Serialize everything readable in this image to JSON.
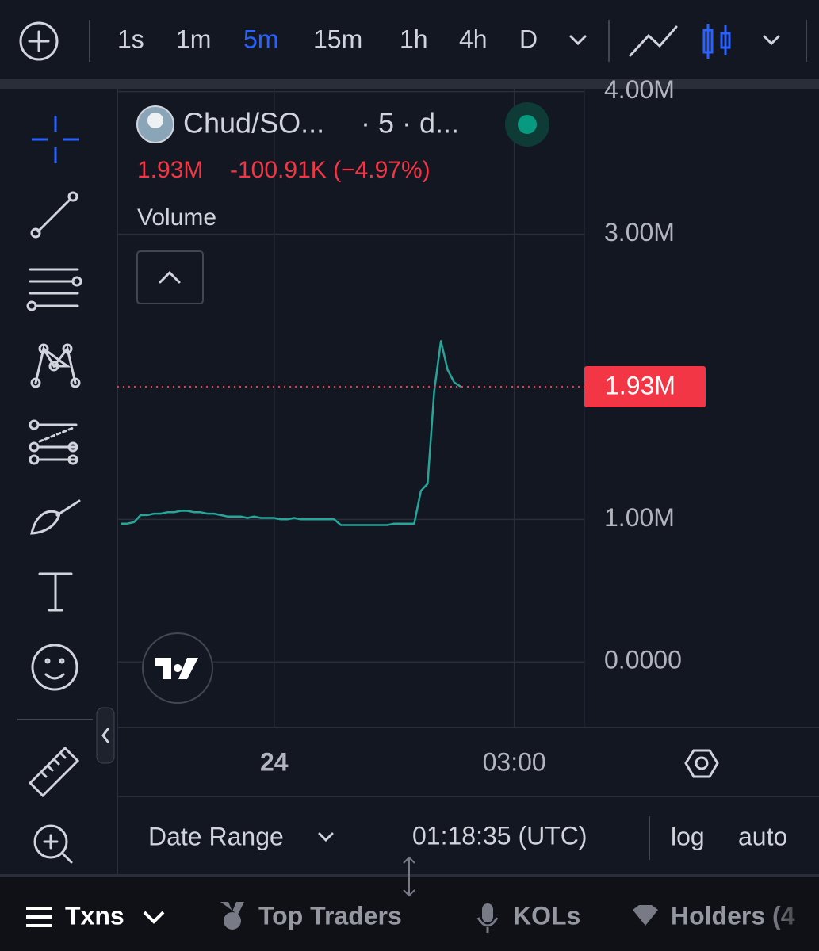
{
  "toolbar": {
    "intervals": [
      "1s",
      "1m",
      "5m",
      "15m",
      "1h",
      "4h",
      "D"
    ],
    "active": "5m"
  },
  "legend": {
    "symbol": "Chud/SO...",
    "meta": "· 5 · d...",
    "price": "1.93M",
    "change": "-100.91K (−4.97%)",
    "study": "Volume"
  },
  "chart_data": {
    "type": "line",
    "color": "#26a69a",
    "categories": [
      null,
      null,
      null,
      null,
      null,
      null,
      null,
      null,
      null,
      null,
      null,
      null,
      null,
      null,
      null,
      null,
      null,
      null,
      null,
      null,
      null,
      null,
      null,
      "24",
      null,
      null,
      null,
      null,
      null,
      null,
      null,
      null,
      null,
      null,
      null,
      null,
      null,
      null,
      null,
      null,
      null,
      null,
      null,
      null,
      null,
      null,
      null,
      null,
      null,
      null,
      null,
      null,
      null,
      null,
      null,
      null,
      null,
      null,
      null,
      "03:00",
      null,
      null,
      null,
      null,
      null,
      null,
      null,
      null,
      null,
      null
    ],
    "values": [
      970000,
      970000,
      980000,
      1030000,
      1030000,
      1040000,
      1040000,
      1050000,
      1050000,
      1060000,
      1060000,
      1050000,
      1050000,
      1040000,
      1040000,
      1030000,
      1020000,
      1020000,
      1020000,
      1010000,
      1020000,
      1010000,
      1010000,
      1010000,
      1000000,
      1000000,
      1010000,
      1000000,
      1000000,
      1000000,
      1000000,
      1000000,
      1000000,
      960000,
      960000,
      960000,
      960000,
      960000,
      960000,
      960000,
      960000,
      970000,
      970000,
      970000,
      970000,
      1200000,
      1250000,
      1900000,
      2250000,
      2050000,
      1960000,
      1930000,
      null,
      null,
      null,
      null,
      null,
      null,
      null,
      null,
      null,
      null,
      null,
      null,
      null,
      null,
      null,
      null,
      null,
      null
    ],
    "ylim": [
      -460000,
      4020000
    ],
    "yticks": [
      {
        "value": 4000000,
        "label": "4.00M"
      },
      {
        "value": 3000000,
        "label": "3.00M"
      },
      {
        "value": 1000000,
        "label": "1.00M"
      },
      {
        "value": 0,
        "label": "0.0000"
      }
    ],
    "grid": true,
    "last_value": 1930000,
    "last_value_label": "1.93M",
    "last_value_color": "#f23645"
  },
  "footer": {
    "date_range": "Date Range",
    "time": "01:18:35 (UTC)",
    "log": "log",
    "auto": "auto"
  },
  "tabs": [
    "Txns",
    "Top Traders",
    "KOLs",
    "Holders (4"
  ]
}
